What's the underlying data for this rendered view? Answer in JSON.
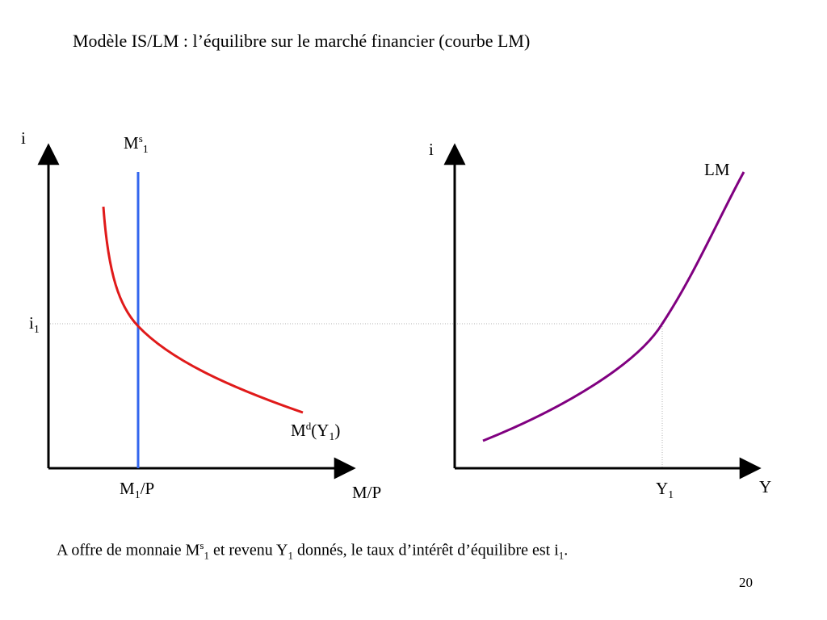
{
  "title": "Modèle IS/LM : l’équilibre sur le marché financier (courbe LM)",
  "caption": {
    "t1": "A offre de monnaie M",
    "t1_sup": "s",
    "t1_sub": "1",
    "t2": " et revenu Y",
    "t2_sub": "1",
    "t3": " donnés, le taux d’intérêt d’équilibre est i",
    "t3_sub": "1",
    "t4": "."
  },
  "page_number": "20",
  "left_graph": {
    "y_axis_label": "i",
    "x_axis_label": "M/P",
    "ms_label": {
      "base": "M",
      "sup": "s",
      "sub": "1"
    },
    "md_label": {
      "pre": "M",
      "sup": "d",
      "mid": "(Y",
      "sub": "1",
      "post": ")"
    },
    "i_label": {
      "base": "i",
      "sub": "1"
    },
    "m_label": {
      "base": "M",
      "sub": "1",
      "post": "/P"
    }
  },
  "right_graph": {
    "y_axis_label": "i",
    "x_axis_label": "Y",
    "lm_label": "LM",
    "y1_label": {
      "base": "Y",
      "sub": "1"
    }
  },
  "colors": {
    "money_supply": "#3366ee",
    "money_demand": "#e01a1a",
    "lm_curve": "#800080",
    "guide_line": "#b0b0b0",
    "axes": "#000000"
  }
}
